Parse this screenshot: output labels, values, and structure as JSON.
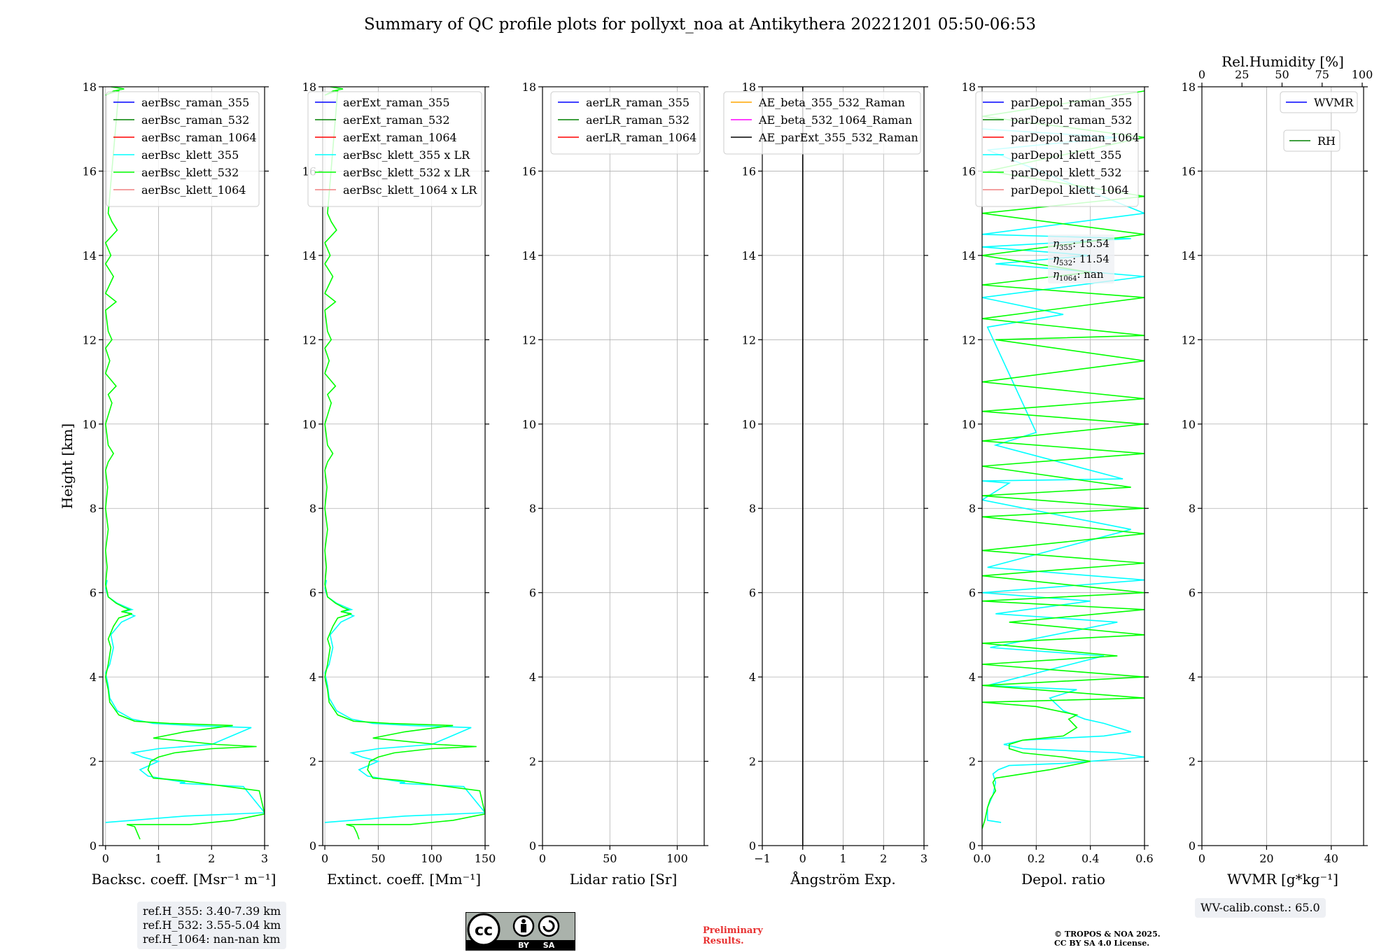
{
  "title": "Summary of QC profile plots for pollyxt_noa at Antikythera 20221201 05:50-06:53",
  "colors": {
    "raman_355": "#0000ff",
    "raman_532": "#008000",
    "raman_1064": "#ff0000",
    "klett_355": "#00ffff",
    "klett_532": "#00ff00",
    "klett_1064": "#f08080",
    "ae_1": "#ffa500",
    "ae_2": "#ff00ff",
    "ae_3": "#000000",
    "grid": "#b0b0b0",
    "box": "#eef0f4",
    "prelim": "#e83030"
  },
  "chart_data": [
    {
      "type": "line",
      "id": "backscatter",
      "xlabel": "Backsc. coeff. [Msr⁻¹ m⁻¹]",
      "ylabel": "Height [km]",
      "xlim": [
        -0.05,
        3
      ],
      "ylim": [
        0,
        18
      ],
      "xticks": [
        "0",
        "1",
        "2",
        "3"
      ],
      "xtick_values": [
        0,
        1,
        2,
        3
      ],
      "yticks": [
        "0",
        "2",
        "4",
        "6",
        "8",
        "10",
        "12",
        "14",
        "16",
        "18"
      ],
      "grid": true,
      "legend_location": "top-right",
      "series": [
        {
          "name": "aerBsc_raman_355",
          "color_key": "raman_355",
          "x": [],
          "y": []
        },
        {
          "name": "aerBsc_raman_532",
          "color_key": "raman_532",
          "x": [],
          "y": []
        },
        {
          "name": "aerBsc_raman_1064",
          "color_key": "raman_1064",
          "x": [],
          "y": []
        },
        {
          "name": "aerBsc_klett_355",
          "color_key": "klett_355",
          "x": [
            0.0,
            0.5,
            1.5,
            3.0,
            2.6,
            1.4,
            1.5,
            1.25,
            0.8,
            0.65,
            1.0,
            0.7,
            0.5,
            1.0,
            2.0,
            2.75,
            1.6,
            0.9,
            0.5,
            0.22,
            0.08,
            0.05,
            0.0,
            0.08,
            0.15,
            0.1,
            0.3,
            0.55,
            0.35,
            0.5,
            0.4,
            0.22,
            0.05,
            0.0,
            0.03
          ],
          "y": [
            0.55,
            0.6,
            0.7,
            0.78,
            1.4,
            1.48,
            1.5,
            1.55,
            1.65,
            1.8,
            2.0,
            2.1,
            2.2,
            2.3,
            2.4,
            2.8,
            2.85,
            2.9,
            3.0,
            3.2,
            3.5,
            3.8,
            4.1,
            4.3,
            4.7,
            5.0,
            5.3,
            5.45,
            5.55,
            5.6,
            5.65,
            5.75,
            5.9,
            6.1,
            6.3
          ]
        },
        {
          "name": "aerBsc_klett_532",
          "color_key": "klett_532",
          "x": [
            0.65,
            0.6,
            0.55,
            0.4,
            1.6,
            2.4,
            3.0,
            2.9,
            1.4,
            0.9,
            0.8,
            0.85,
            1.0,
            1.3,
            2.0,
            2.85,
            2.1,
            0.9,
            1.5,
            2.4,
            1.2,
            0.55,
            0.25,
            0.08,
            0.05,
            0.0,
            0.05,
            0.1,
            0.05,
            0.15,
            0.25,
            0.5,
            0.3,
            0.45,
            0.35,
            0.2,
            0.05,
            0.0,
            0.03,
            0.0,
            0.05,
            0.0,
            0.04,
            0.0,
            0.05,
            0.15,
            0.05,
            0.0,
            0.12,
            0.05,
            0.2,
            0.0,
            0.08,
            0.0,
            0.12,
            0.05,
            0.0,
            0.2,
            0.0,
            0.15,
            0.0,
            0.1,
            0.0,
            0.22,
            0.12,
            0.05,
            0.25,
            0.1,
            0.0,
            0.15,
            0.35,
            0.1
          ],
          "y": [
            0.15,
            0.3,
            0.45,
            0.5,
            0.5,
            0.6,
            0.75,
            1.3,
            1.55,
            1.6,
            1.8,
            2.0,
            2.1,
            2.2,
            2.3,
            2.35,
            2.4,
            2.55,
            2.7,
            2.85,
            2.9,
            2.95,
            3.1,
            3.4,
            3.7,
            4.0,
            4.3,
            4.7,
            4.9,
            5.2,
            5.4,
            5.5,
            5.55,
            5.6,
            5.65,
            5.75,
            5.9,
            6.2,
            6.6,
            7.0,
            7.5,
            8.0,
            8.5,
            8.9,
            9.1,
            9.3,
            9.5,
            10.0,
            10.5,
            10.7,
            10.9,
            11.2,
            11.5,
            11.8,
            12.0,
            12.2,
            12.7,
            12.9,
            13.1,
            13.5,
            13.8,
            14.0,
            14.3,
            14.6,
            14.8,
            15.0,
            17.9,
            17.85,
            17.8,
            17.9,
            17.95,
            18.0
          ]
        },
        {
          "name": "aerBsc_klett_1064",
          "color_key": "klett_1064",
          "x": [],
          "y": []
        }
      ],
      "info_box": [
        "ref.H_355: 3.40-7.39 km",
        "ref.H_532: 3.55-5.04 km",
        "ref.H_1064: nan-nan km"
      ]
    },
    {
      "type": "line",
      "id": "extinction",
      "xlabel": "Extinct. coeff. [Mm⁻¹]",
      "xlim": [
        -2,
        150
      ],
      "ylim": [
        0,
        18
      ],
      "xticks": [
        "0",
        "50",
        "100",
        "150"
      ],
      "xtick_values": [
        0,
        50,
        100,
        150
      ],
      "yticks": [
        "0",
        "2",
        "4",
        "6",
        "8",
        "10",
        "12",
        "14",
        "16",
        "18"
      ],
      "grid": true,
      "legend_location": "top-right",
      "series": [
        {
          "name": "aerExt_raman_355",
          "color_key": "raman_355",
          "x": [],
          "y": []
        },
        {
          "name": "aerExt_raman_532",
          "color_key": "raman_532",
          "x": [],
          "y": []
        },
        {
          "name": "aerExt_raman_1064",
          "color_key": "raman_1064",
          "x": [],
          "y": []
        },
        {
          "name": "aerBsc_klett_355 x LR",
          "color_key": "klett_355",
          "x": [
            0.0,
            25,
            75,
            150,
            130,
            70,
            75,
            62,
            40,
            32,
            50,
            35,
            25,
            50,
            100,
            137,
            80,
            45,
            25,
            11,
            4,
            2.5,
            0.0,
            4,
            7.5,
            5,
            15,
            27,
            17,
            25,
            20,
            11,
            2.5,
            0.0,
            1.5
          ],
          "y": [
            0.55,
            0.6,
            0.7,
            0.78,
            1.4,
            1.48,
            1.5,
            1.55,
            1.65,
            1.8,
            2.0,
            2.1,
            2.2,
            2.3,
            2.4,
            2.8,
            2.85,
            2.9,
            3.0,
            3.2,
            3.5,
            3.8,
            4.1,
            4.3,
            4.7,
            5.0,
            5.3,
            5.45,
            5.55,
            5.6,
            5.65,
            5.75,
            5.9,
            6.1,
            6.3
          ]
        },
        {
          "name": "aerBsc_klett_532 x LR",
          "color_key": "klett_532",
          "x": [
            32,
            30,
            27,
            20,
            80,
            120,
            150,
            145,
            70,
            45,
            40,
            42,
            50,
            65,
            100,
            142,
            105,
            45,
            75,
            120,
            60,
            27,
            12,
            4,
            2.5,
            0.0,
            2.5,
            5,
            2.5,
            7.5,
            12,
            25,
            15,
            22,
            17,
            10,
            2.5,
            0.0,
            1.5,
            0.0,
            2.5,
            0.0,
            2,
            0.0,
            2.5,
            7.5,
            2.5,
            0.0,
            6,
            2.5,
            10,
            0.0,
            4,
            0.0,
            6,
            2.5,
            0.0,
            10,
            0.0,
            7.5,
            0.0,
            5,
            0.0,
            11,
            6,
            2.5,
            12,
            5,
            0.0,
            7.5,
            17,
            5
          ],
          "y": [
            0.15,
            0.3,
            0.45,
            0.5,
            0.5,
            0.6,
            0.75,
            1.3,
            1.55,
            1.6,
            1.8,
            2.0,
            2.1,
            2.2,
            2.3,
            2.35,
            2.4,
            2.55,
            2.7,
            2.85,
            2.9,
            2.95,
            3.1,
            3.4,
            3.7,
            4.0,
            4.3,
            4.7,
            4.9,
            5.2,
            5.4,
            5.5,
            5.55,
            5.6,
            5.65,
            5.75,
            5.9,
            6.2,
            6.6,
            7.0,
            7.5,
            8.0,
            8.5,
            8.9,
            9.1,
            9.3,
            9.5,
            10.0,
            10.5,
            10.7,
            10.9,
            11.2,
            11.5,
            11.8,
            12.0,
            12.2,
            12.7,
            12.9,
            13.1,
            13.5,
            13.8,
            14.0,
            14.3,
            14.6,
            14.8,
            15.0,
            17.9,
            17.85,
            17.8,
            17.9,
            17.95,
            18.0
          ]
        },
        {
          "name": "aerBsc_klett_1064 x LR",
          "color_key": "klett_1064",
          "x": [],
          "y": []
        }
      ]
    },
    {
      "type": "line",
      "id": "lidar_ratio",
      "xlabel": "Lidar ratio [Sr]",
      "xlim": [
        0,
        120
      ],
      "ylim": [
        0,
        18
      ],
      "xticks": [
        "0",
        "50",
        "100"
      ],
      "xtick_values": [
        0,
        50,
        100
      ],
      "yticks": [
        "0",
        "2",
        "4",
        "6",
        "8",
        "10",
        "12",
        "14",
        "16",
        "18"
      ],
      "grid": true,
      "legend_location": "top-right",
      "series": [
        {
          "name": "aerLR_raman_355",
          "color_key": "raman_355",
          "x": [],
          "y": []
        },
        {
          "name": "aerLR_raman_532",
          "color_key": "raman_532",
          "x": [],
          "y": []
        },
        {
          "name": "aerLR_raman_1064",
          "color_key": "raman_1064",
          "x": [],
          "y": []
        }
      ]
    },
    {
      "type": "line",
      "id": "angstrom",
      "xlabel": "Ångström Exp.",
      "xlim": [
        -1,
        3
      ],
      "ylim": [
        0,
        18
      ],
      "xticks": [
        "−1",
        "0",
        "1",
        "2",
        "3"
      ],
      "xtick_values": [
        -1,
        0,
        1,
        2,
        3
      ],
      "yticks": [
        "0",
        "2",
        "4",
        "6",
        "8",
        "10",
        "12",
        "14",
        "16",
        "18"
      ],
      "grid": true,
      "legend_location": "top-right",
      "series": [
        {
          "name": "AE_beta_355_532_Raman",
          "color_key": "ae_1",
          "x": [],
          "y": []
        },
        {
          "name": "AE_beta_532_1064_Raman",
          "color_key": "ae_2",
          "x": [],
          "y": []
        },
        {
          "name": "AE_parExt_355_532_Raman",
          "color_key": "ae_3",
          "x": [
            0,
            0
          ],
          "y": [
            0,
            18
          ]
        }
      ]
    },
    {
      "type": "line",
      "id": "depol",
      "xlabel": "Depol. ratio",
      "xlim": [
        0,
        0.6
      ],
      "ylim": [
        0,
        18
      ],
      "xticks": [
        "0.0",
        "0.2",
        "0.4",
        "0.6"
      ],
      "xtick_values": [
        0,
        0.2,
        0.4,
        0.6
      ],
      "yticks": [
        "0",
        "2",
        "4",
        "6",
        "8",
        "10",
        "12",
        "14",
        "16",
        "18"
      ],
      "grid": true,
      "legend_location": "top-left",
      "series": [
        {
          "name": "parDepol_raman_355",
          "color_key": "raman_355",
          "x": [],
          "y": []
        },
        {
          "name": "parDepol_raman_532",
          "color_key": "raman_532",
          "x": [],
          "y": []
        },
        {
          "name": "parDepol_raman_1064",
          "color_key": "raman_1064",
          "x": [],
          "y": []
        },
        {
          "name": "parDepol_klett_355",
          "color_key": "klett_355",
          "x": [
            0.07,
            0.02,
            0.02,
            0.04,
            0.05,
            0.04,
            0.06,
            0.1,
            0.3,
            0.6,
            0.5,
            0.15,
            0.08,
            0.15,
            0.3,
            0.45,
            0.55,
            0.5,
            0.45,
            0.38,
            0.3,
            0.25,
            0.35,
            0.02,
            0.45,
            0.03,
            0.5,
            0.05,
            0.4,
            0.0,
            0.6,
            0.02,
            0.55,
            0.0,
            0.1,
            0.0,
            0.52,
            0.05,
            0.2,
            0.02,
            0.3,
            0.0,
            0.6,
            0.05,
            0.4,
            0.0,
            0.55,
            0.0,
            0.6,
            0.02,
            0.5,
            0.0
          ],
          "y": [
            0.55,
            0.6,
            0.9,
            1.2,
            1.5,
            1.7,
            1.8,
            1.9,
            1.95,
            2.1,
            2.2,
            2.3,
            2.4,
            2.5,
            2.55,
            2.6,
            2.7,
            2.8,
            2.9,
            3.0,
            3.2,
            3.5,
            3.7,
            3.8,
            4.5,
            4.7,
            5.3,
            5.5,
            5.8,
            6.0,
            6.3,
            6.6,
            7.5,
            8.2,
            8.6,
            8.65,
            8.7,
            9.5,
            9.8,
            12.3,
            12.6,
            13.0,
            13.5,
            13.8,
            14.0,
            14.2,
            14.4,
            14.5,
            15.0,
            16.5,
            16.8,
            17.0
          ]
        },
        {
          "name": "parDepol_klett_532",
          "color_key": "klett_532",
          "x": [
            0.0,
            0.01,
            0.02,
            0.03,
            0.05,
            0.04,
            0.05,
            0.1,
            0.25,
            0.4,
            0.3,
            0.15,
            0.1,
            0.1,
            0.15,
            0.3,
            0.35,
            0.32,
            0.35,
            0.2,
            0.0,
            0.6,
            0.0,
            0.6,
            0.0,
            0.5,
            0.0,
            0.6,
            0.1,
            0.6,
            0.0,
            0.6,
            0.0,
            0.6,
            0.0,
            0.6,
            0.0,
            0.6,
            0.0,
            0.55,
            0.0,
            0.6,
            0.0,
            0.6,
            0.0,
            0.6,
            0.0,
            0.6,
            0.05,
            0.6,
            0.0,
            0.6,
            0.0,
            0.4,
            0.0,
            0.6,
            0.0,
            0.6,
            0.02,
            0.6,
            0.0,
            0.6
          ],
          "y": [
            0.4,
            0.6,
            0.9,
            1.1,
            1.3,
            1.5,
            1.6,
            1.65,
            1.8,
            2.0,
            2.1,
            2.2,
            2.3,
            2.4,
            2.5,
            2.6,
            2.8,
            3.0,
            3.1,
            3.3,
            3.4,
            3.5,
            3.8,
            4.0,
            4.3,
            4.5,
            4.8,
            5.0,
            5.3,
            5.6,
            5.8,
            6.0,
            6.4,
            6.7,
            7.0,
            7.4,
            7.8,
            8.0,
            8.3,
            8.5,
            9.0,
            9.3,
            9.6,
            10.0,
            10.3,
            10.6,
            11.0,
            11.5,
            12.0,
            12.1,
            12.5,
            13.0,
            13.3,
            13.6,
            14.0,
            14.5,
            15.0,
            15.4,
            16.0,
            16.8,
            17.3,
            17.9
          ]
        },
        {
          "name": "parDepol_klett_1064",
          "color_key": "klett_1064",
          "x": [],
          "y": []
        }
      ],
      "annotation": [
        "15.54",
        "11.54",
        "nan"
      ],
      "annotation_labels": [
        "η",
        "355",
        "532",
        "1064"
      ]
    },
    {
      "type": "line",
      "id": "wvmr",
      "xlabel": "WVMR [g*kg⁻¹]",
      "xlim": [
        0,
        50
      ],
      "ylim": [
        0,
        18
      ],
      "xticks": [
        "0",
        "20",
        "40"
      ],
      "xtick_values": [
        0,
        20,
        40
      ],
      "top_xlabel": "Rel.Humidity [%]",
      "top_xticks": [
        "0",
        "25",
        "50",
        "75",
        "100"
      ],
      "top_xtick_values": [
        0,
        25,
        50,
        75,
        100
      ],
      "yticks": [
        "0",
        "2",
        "4",
        "6",
        "8",
        "10",
        "12",
        "14",
        "16",
        "18"
      ],
      "grid": true,
      "legend_location": "top-right",
      "series": [
        {
          "name": "WVMR",
          "color_key": "raman_355",
          "x": [],
          "y": []
        },
        {
          "name": "RH",
          "color_key": "raman_532",
          "x": [],
          "y": []
        }
      ],
      "info_box": [
        "WV-calib.const.: 65.0"
      ]
    }
  ],
  "footer": {
    "license_badge": [
      "cc",
      "BY",
      "SA"
    ],
    "preliminary": [
      "Preliminary",
      "Results."
    ],
    "copyright": [
      "© TROPOS & NOA 2025.",
      "CC BY SA 4.0 License."
    ]
  }
}
